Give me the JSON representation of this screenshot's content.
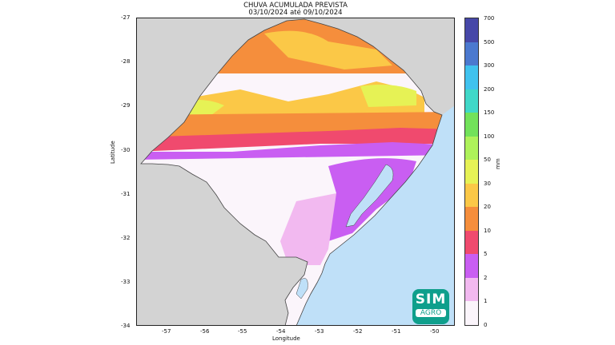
{
  "title_line1": "CHUVA ACUMULADA PREVISTA",
  "title_line2": "03/10/2024 até 09/10/2024",
  "xlabel": "Longitude",
  "ylabel": "Latitude",
  "x_ticks": [
    "-57",
    "-56",
    "-55",
    "-54",
    "-53",
    "-52",
    "-51",
    "-50"
  ],
  "y_ticks": [
    "-27",
    "-28",
    "-29",
    "-30",
    "-31",
    "-32",
    "-33",
    "-34"
  ],
  "colorbar": {
    "unit": "mm",
    "levels": [
      "0",
      "1",
      "2",
      "5",
      "10",
      "20",
      "30",
      "50",
      "100",
      "150",
      "200",
      "300",
      "500",
      "700"
    ],
    "colors": [
      "#fbf5fb",
      "#f2b9f0",
      "#c95ef2",
      "#f04a6e",
      "#f58e3c",
      "#fbc847",
      "#e6f255",
      "#aef25a",
      "#72e25a",
      "#40d8c8",
      "#40c2ee",
      "#4b79cf",
      "#4748a8"
    ]
  },
  "logo": {
    "line1": "SIM",
    "line2": "AGRO"
  },
  "colors": {
    "land": "#d3d3d3",
    "ocean": "#bfe0f8",
    "dry": "#fbf5fb"
  }
}
